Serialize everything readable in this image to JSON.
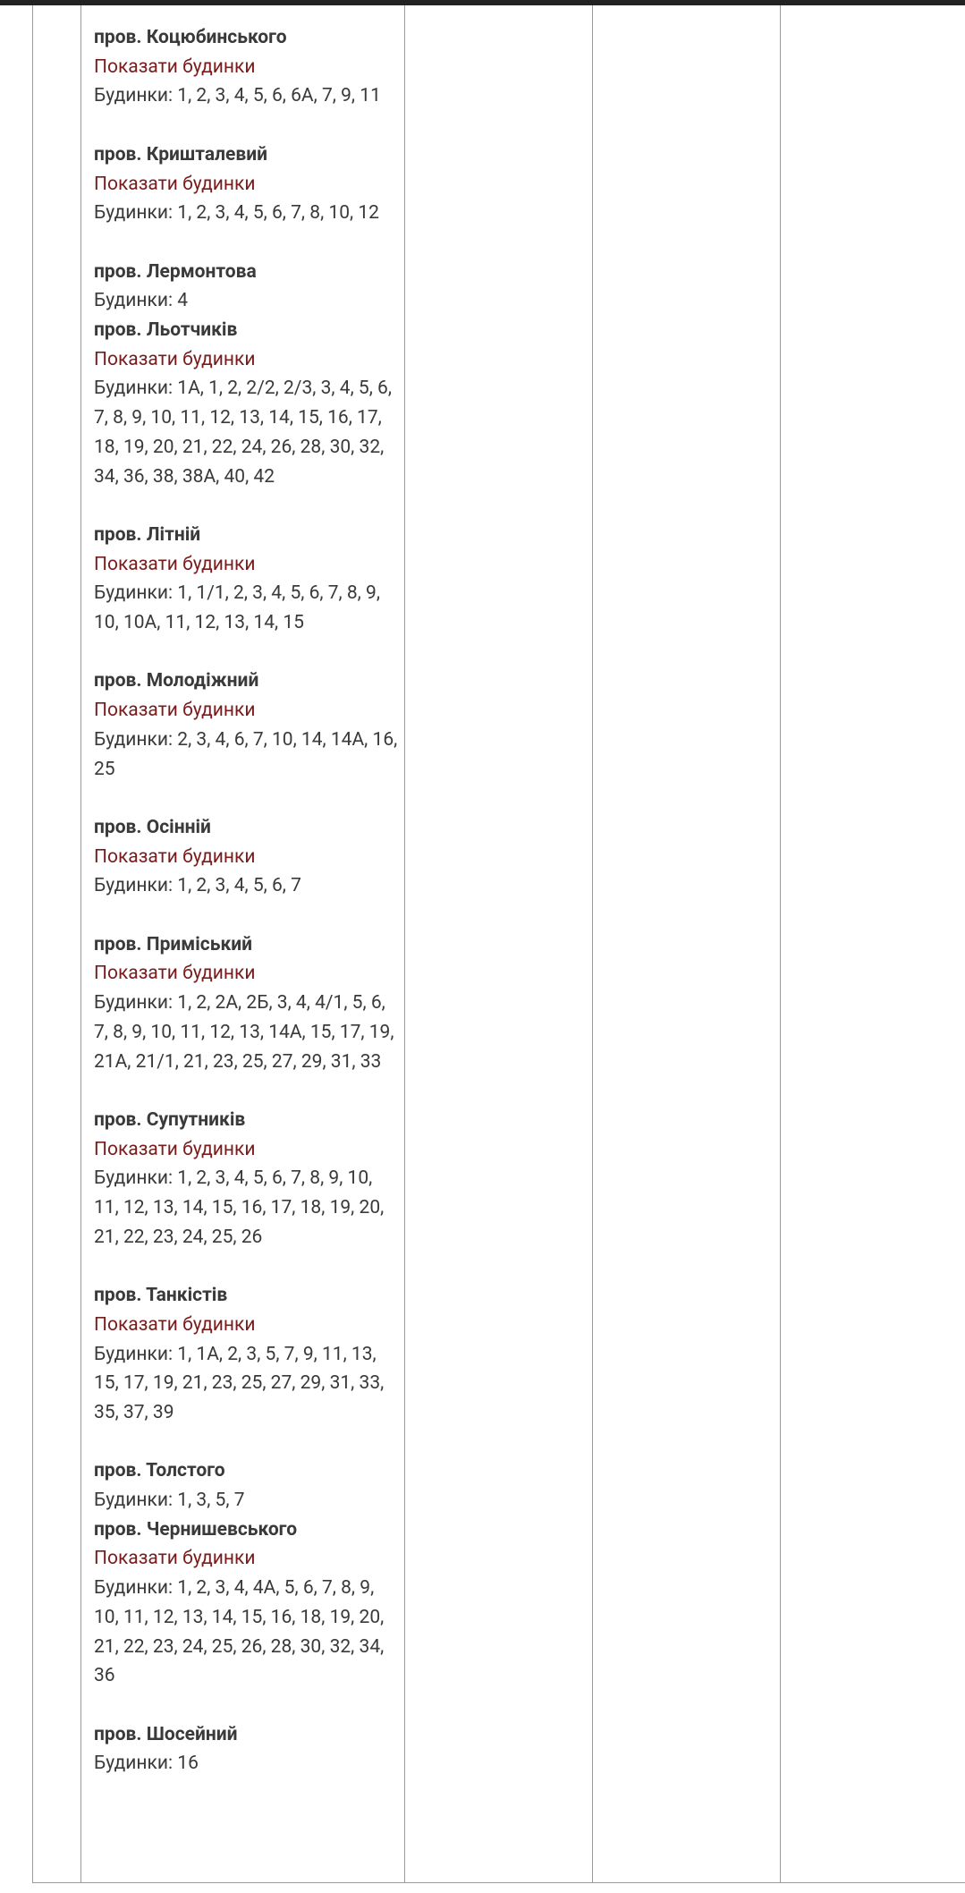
{
  "entries": [
    {
      "name": "пров. Коцюбинського",
      "link": "Показати будинки",
      "houses": "Будинки: 1, 2, 3, 4, 5, 6, 6А, 7, 9, 11"
    },
    {
      "name": "пров. Кришталевий",
      "link": "Показати будинки",
      "houses": "Будинки: 1, 2, 3, 4, 5, 6, 7, 8, 10, 12"
    },
    {
      "name": "пров. Лермонтова",
      "houses": "Будинки: 4"
    },
    {
      "name": "пров. Льотчиків",
      "link": "Показати будинки",
      "houses": "Будинки: 1А, 1, 2, 2/2, 2/3, 3, 4, 5, 6, 7, 8, 9, 10, 11, 12, 13, 14, 15, 16, 17, 18, 19, 20, 21, 22, 24, 26, 28, 30, 32, 34, 36, 38, 38А, 40, 42"
    },
    {
      "name": "пров. Літній",
      "link": "Показати будинки",
      "houses": "Будинки: 1, 1/1, 2, 3, 4, 5, 6, 7, 8, 9, 10, 10А, 11, 12, 13, 14, 15"
    },
    {
      "name": "пров. Молодіжний",
      "link": "Показати будинки",
      "houses": "Будинки: 2, 3, 4, 6, 7, 10, 14, 14А, 16, 25"
    },
    {
      "name": "пров. Осінній",
      "link": "Показати будинки",
      "houses": "Будинки: 1, 2, 3, 4, 5, 6, 7"
    },
    {
      "name": "пров. Приміський",
      "link": "Показати будинки",
      "houses": "Будинки: 1, 2, 2А, 2Б, 3, 4, 4/1, 5, 6, 7, 8, 9, 10, 11, 12, 13, 14А, 15, 17, 19, 21А, 21/1, 21, 23, 25, 27, 29, 31, 33"
    },
    {
      "name": "пров. Супутників",
      "link": "Показати будинки",
      "houses": "Будинки: 1, 2, 3, 4, 5, 6, 7, 8, 9, 10, 11, 12, 13, 14, 15, 16, 17, 18, 19, 20, 21, 22, 23, 24, 25, 26"
    },
    {
      "name": "пров. Танкістів",
      "link": "Показати будинки",
      "houses": "Будинки: 1, 1А, 2, 3, 5, 7, 9, 11, 13, 15, 17, 19, 21, 23, 25, 27, 29, 31, 33, 35, 37, 39"
    },
    {
      "name": "пров. Толстого",
      "houses": "Будинки: 1, 3, 5, 7"
    },
    {
      "name": "пров. Чернишевського",
      "link": "Показати будинки",
      "houses": "Будинки: 1, 2, 3, 4, 4А, 5, 6, 7, 8, 9, 10, 11, 12, 13, 14, 15, 16, 18, 19, 20, 21, 22, 23, 24, 25, 26, 28, 30, 32, 34, 36"
    },
    {
      "name": "пров. Шосейний",
      "houses": "Будинки: 16"
    }
  ]
}
